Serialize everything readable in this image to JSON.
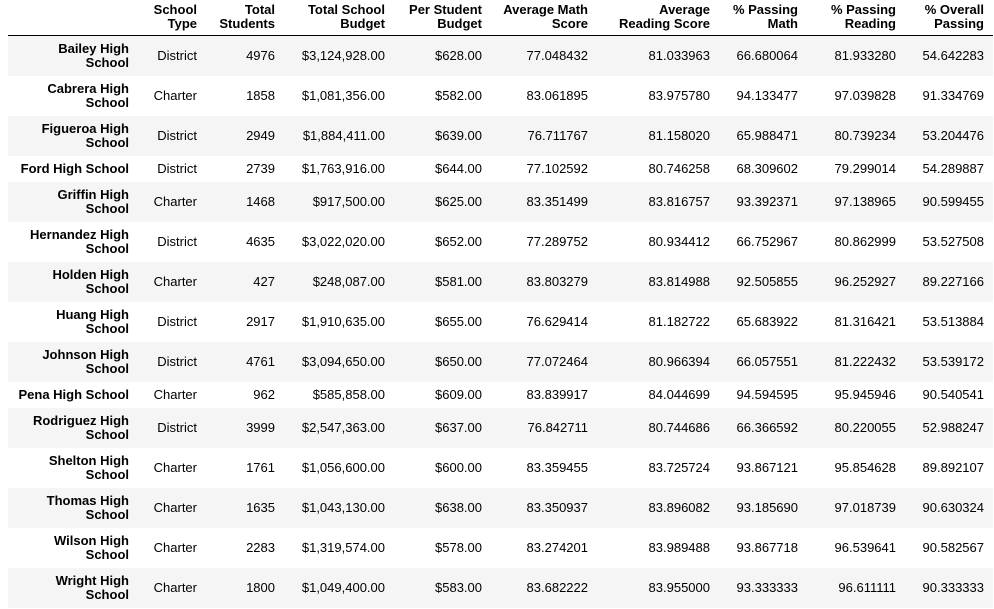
{
  "chart_data": {
    "type": "table",
    "title": "",
    "index_header": "",
    "columns": [
      "School Type",
      "Total Students",
      "Total School Budget",
      "Per Student Budget",
      "Average Math Score",
      "Average Reading Score",
      "% Passing Math",
      "% Passing Reading",
      "% Overall Passing"
    ],
    "rows": [
      {
        "index": "Bailey High School",
        "values": [
          "District",
          "4976",
          "$3,124,928.00",
          "$628.00",
          "77.048432",
          "81.033963",
          "66.680064",
          "81.933280",
          "54.642283"
        ]
      },
      {
        "index": "Cabrera High School",
        "values": [
          "Charter",
          "1858",
          "$1,081,356.00",
          "$582.00",
          "83.061895",
          "83.975780",
          "94.133477",
          "97.039828",
          "91.334769"
        ]
      },
      {
        "index": "Figueroa High School",
        "values": [
          "District",
          "2949",
          "$1,884,411.00",
          "$639.00",
          "76.711767",
          "81.158020",
          "65.988471",
          "80.739234",
          "53.204476"
        ]
      },
      {
        "index": "Ford High School",
        "values": [
          "District",
          "2739",
          "$1,763,916.00",
          "$644.00",
          "77.102592",
          "80.746258",
          "68.309602",
          "79.299014",
          "54.289887"
        ]
      },
      {
        "index": "Griffin High School",
        "values": [
          "Charter",
          "1468",
          "$917,500.00",
          "$625.00",
          "83.351499",
          "83.816757",
          "93.392371",
          "97.138965",
          "90.599455"
        ]
      },
      {
        "index": "Hernandez High School",
        "values": [
          "District",
          "4635",
          "$3,022,020.00",
          "$652.00",
          "77.289752",
          "80.934412",
          "66.752967",
          "80.862999",
          "53.527508"
        ]
      },
      {
        "index": "Holden High School",
        "values": [
          "Charter",
          "427",
          "$248,087.00",
          "$581.00",
          "83.803279",
          "83.814988",
          "92.505855",
          "96.252927",
          "89.227166"
        ]
      },
      {
        "index": "Huang High School",
        "values": [
          "District",
          "2917",
          "$1,910,635.00",
          "$655.00",
          "76.629414",
          "81.182722",
          "65.683922",
          "81.316421",
          "53.513884"
        ]
      },
      {
        "index": "Johnson High School",
        "values": [
          "District",
          "4761",
          "$3,094,650.00",
          "$650.00",
          "77.072464",
          "80.966394",
          "66.057551",
          "81.222432",
          "53.539172"
        ]
      },
      {
        "index": "Pena High School",
        "values": [
          "Charter",
          "962",
          "$585,858.00",
          "$609.00",
          "83.839917",
          "84.044699",
          "94.594595",
          "95.945946",
          "90.540541"
        ]
      },
      {
        "index": "Rodriguez High School",
        "values": [
          "District",
          "3999",
          "$2,547,363.00",
          "$637.00",
          "76.842711",
          "80.744686",
          "66.366592",
          "80.220055",
          "52.988247"
        ]
      },
      {
        "index": "Shelton High School",
        "values": [
          "Charter",
          "1761",
          "$1,056,600.00",
          "$600.00",
          "83.359455",
          "83.725724",
          "93.867121",
          "95.854628",
          "89.892107"
        ]
      },
      {
        "index": "Thomas High School",
        "values": [
          "Charter",
          "1635",
          "$1,043,130.00",
          "$638.00",
          "83.350937",
          "83.896082",
          "93.185690",
          "97.018739",
          "90.630324"
        ]
      },
      {
        "index": "Wilson High School",
        "values": [
          "Charter",
          "2283",
          "$1,319,574.00",
          "$578.00",
          "83.274201",
          "83.989488",
          "93.867718",
          "96.539641",
          "90.582567"
        ]
      },
      {
        "index": "Wright High School",
        "values": [
          "Charter",
          "1800",
          "$1,049,400.00",
          "$583.00",
          "83.682222",
          "83.955000",
          "93.333333",
          "96.611111",
          "90.333333"
        ]
      }
    ]
  },
  "style": {
    "stripe_color": "#f5f5f5",
    "row_color": "#ffffff",
    "text_color": "#000000",
    "header_border_color": "#000000"
  }
}
